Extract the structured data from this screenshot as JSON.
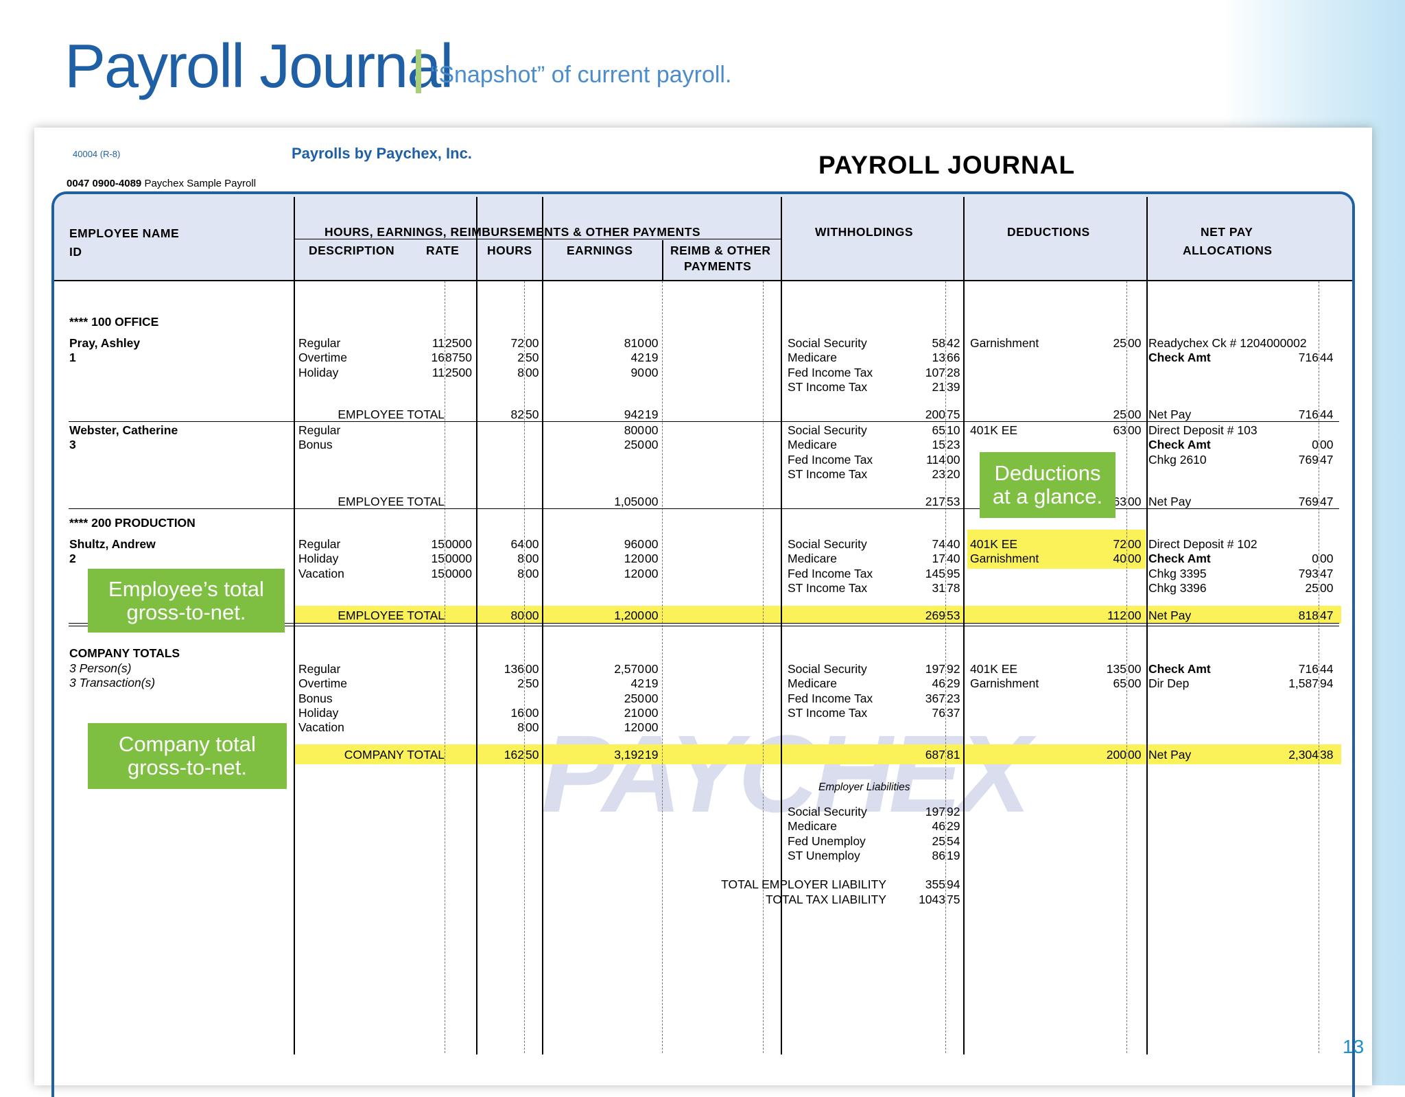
{
  "header": {
    "title": "Payroll Journal",
    "subtitle": "“Snapshot” of current payroll."
  },
  "report": {
    "form_code": "40004 (R-8)",
    "company": "Payrolls by Paychex, Inc.",
    "title": "PAYROLL JOURNAL",
    "account_number": "0047 0900-4089",
    "account_name": "Paychex Sample Payroll",
    "watermark": "PAYCHEX"
  },
  "columns": {
    "employee_name": "EMPLOYEE NAME",
    "id": "ID",
    "hours_group": "HOURS, EARNINGS, REIMBURSEMENTS & OTHER PAYMENTS",
    "description": "DESCRIPTION",
    "rate": "RATE",
    "hours": "HOURS",
    "earnings": "EARNINGS",
    "reimb_1": "REIMB & OTHER",
    "reimb_2": "PAYMENTS",
    "withholdings": "WITHHOLDINGS",
    "deductions": "DEDUCTIONS",
    "net_pay_1": "NET PAY",
    "net_pay_2": "ALLOCATIONS"
  },
  "departments": [
    "**** 100 OFFICE",
    "**** 200 PRODUCTION"
  ],
  "labels": {
    "employee_total": "EMPLOYEE TOTAL",
    "company_totals": "COMPANY TOTALS",
    "company_total": "COMPANY TOTAL",
    "persons": "3 Person(s)",
    "transactions": "3 Transaction(s)",
    "employer_liabilities": "Employer Liabilities",
    "total_employer_liability": "TOTAL EMPLOYER LIABILITY",
    "total_tax_liability": "TOTAL TAX LIABILITY",
    "net_pay": "Net Pay"
  },
  "employees": [
    {
      "name": "Pray, Ashley",
      "id": "1",
      "earnings": [
        {
          "desc": "Regular",
          "rate_i": "11",
          "rate_d": "2500",
          "hours_i": "72",
          "hours_d": "00",
          "earn_i": "810",
          "earn_d": "00"
        },
        {
          "desc": "Overtime",
          "rate_i": "16",
          "rate_d": "8750",
          "hours_i": "2",
          "hours_d": "50",
          "earn_i": "42",
          "earn_d": "19"
        },
        {
          "desc": "Holiday",
          "rate_i": "11",
          "rate_d": "2500",
          "hours_i": "8",
          "hours_d": "00",
          "earn_i": "90",
          "earn_d": "00"
        }
      ],
      "withholdings": [
        {
          "label": "Social Security",
          "i": "58",
          "d": "42"
        },
        {
          "label": "Medicare",
          "i": "13",
          "d": "66"
        },
        {
          "label": "Fed Income Tax",
          "i": "107",
          "d": "28"
        },
        {
          "label": "ST Income Tax",
          "i": "21",
          "d": "39"
        }
      ],
      "deductions": [
        {
          "label": "Garnishment",
          "i": "25",
          "d": "00"
        }
      ],
      "net": [
        {
          "label": "Readychex Ck # 1204000002",
          "i": "",
          "d": "",
          "bold": false
        },
        {
          "label": "Check Amt",
          "i": "716",
          "d": "44",
          "bold": true
        }
      ],
      "total": {
        "hours_i": "82",
        "hours_d": "50",
        "earn_i": "942",
        "earn_d": "19",
        "wh_i": "200",
        "wh_d": "75",
        "ded_i": "25",
        "ded_d": "00",
        "net_i": "716",
        "net_d": "44"
      }
    },
    {
      "name": "Webster, Catherine",
      "id": "3",
      "earnings": [
        {
          "desc": "Regular",
          "rate_i": "",
          "rate_d": "",
          "hours_i": "",
          "hours_d": "",
          "earn_i": "800",
          "earn_d": "00"
        },
        {
          "desc": "Bonus",
          "rate_i": "",
          "rate_d": "",
          "hours_i": "",
          "hours_d": "",
          "earn_i": "250",
          "earn_d": "00"
        }
      ],
      "withholdings": [
        {
          "label": "Social Security",
          "i": "65",
          "d": "10"
        },
        {
          "label": "Medicare",
          "i": "15",
          "d": "23"
        },
        {
          "label": "Fed Income Tax",
          "i": "114",
          "d": "00"
        },
        {
          "label": "ST Income Tax",
          "i": "23",
          "d": "20"
        }
      ],
      "deductions": [
        {
          "label": "401K EE",
          "i": "63",
          "d": "00"
        }
      ],
      "net": [
        {
          "label": "Direct Deposit # 103",
          "i": "",
          "d": "",
          "bold": false
        },
        {
          "label": "Check Amt",
          "i": "0",
          "d": "00",
          "bold": true
        },
        {
          "label": "Chkg 2610",
          "i": "769",
          "d": "47",
          "bold": false
        }
      ],
      "total": {
        "hours_i": "",
        "hours_d": "",
        "earn_i": "1,050",
        "earn_d": "00",
        "wh_i": "217",
        "wh_d": "53",
        "ded_i": "63",
        "ded_d": "00",
        "net_i": "769",
        "net_d": "47"
      }
    },
    {
      "name": "Shultz, Andrew",
      "id": "2",
      "earnings": [
        {
          "desc": "Regular",
          "rate_i": "15",
          "rate_d": "0000",
          "hours_i": "64",
          "hours_d": "00",
          "earn_i": "960",
          "earn_d": "00"
        },
        {
          "desc": "Holiday",
          "rate_i": "15",
          "rate_d": "0000",
          "hours_i": "8",
          "hours_d": "00",
          "earn_i": "120",
          "earn_d": "00"
        },
        {
          "desc": "Vacation",
          "rate_i": "15",
          "rate_d": "0000",
          "hours_i": "8",
          "hours_d": "00",
          "earn_i": "120",
          "earn_d": "00"
        }
      ],
      "withholdings": [
        {
          "label": "Social Security",
          "i": "74",
          "d": "40"
        },
        {
          "label": "Medicare",
          "i": "17",
          "d": "40"
        },
        {
          "label": "Fed Income Tax",
          "i": "145",
          "d": "95"
        },
        {
          "label": "ST Income Tax",
          "i": "31",
          "d": "78"
        }
      ],
      "deductions": [
        {
          "label": "401K EE",
          "i": "72",
          "d": "00"
        },
        {
          "label": "Garnishment",
          "i": "40",
          "d": "00"
        }
      ],
      "net": [
        {
          "label": "Direct Deposit # 102",
          "i": "",
          "d": "",
          "bold": false
        },
        {
          "label": "Check Amt",
          "i": "0",
          "d": "00",
          "bold": true
        },
        {
          "label": "Chkg 3395",
          "i": "793",
          "d": "47",
          "bold": false
        },
        {
          "label": "Chkg 3396",
          "i": "25",
          "d": "00",
          "bold": false
        }
      ],
      "total": {
        "hours_i": "80",
        "hours_d": "00",
        "earn_i": "1,200",
        "earn_d": "00",
        "wh_i": "269",
        "wh_d": "53",
        "ded_i": "112",
        "ded_d": "00",
        "net_i": "818",
        "net_d": "47"
      }
    }
  ],
  "company": {
    "earnings": [
      {
        "desc": "Regular",
        "hours_i": "136",
        "hours_d": "00",
        "earn_i": "2,570",
        "earn_d": "00"
      },
      {
        "desc": "Overtime",
        "hours_i": "2",
        "hours_d": "50",
        "earn_i": "42",
        "earn_d": "19"
      },
      {
        "desc": "Bonus",
        "hours_i": "",
        "hours_d": "",
        "earn_i": "250",
        "earn_d": "00"
      },
      {
        "desc": "Holiday",
        "hours_i": "16",
        "hours_d": "00",
        "earn_i": "210",
        "earn_d": "00"
      },
      {
        "desc": "Vacation",
        "hours_i": "8",
        "hours_d": "00",
        "earn_i": "120",
        "earn_d": "00"
      }
    ],
    "withholdings": [
      {
        "label": "Social Security",
        "i": "197",
        "d": "92"
      },
      {
        "label": "Medicare",
        "i": "46",
        "d": "29"
      },
      {
        "label": "Fed Income Tax",
        "i": "367",
        "d": "23"
      },
      {
        "label": "ST Income Tax",
        "i": "76",
        "d": "37"
      }
    ],
    "deductions": [
      {
        "label": "401K EE",
        "i": "135",
        "d": "00"
      },
      {
        "label": "Garnishment",
        "i": "65",
        "d": "00"
      }
    ],
    "net": [
      {
        "label": "Check Amt",
        "i": "716",
        "d": "44",
        "bold": true
      },
      {
        "label": "Dir Dep",
        "i": "1,587",
        "d": "94",
        "bold": false
      }
    ],
    "total": {
      "hours_i": "162",
      "hours_d": "50",
      "earn_i": "3,192",
      "earn_d": "19",
      "wh_i": "687",
      "wh_d": "81",
      "ded_i": "200",
      "ded_d": "00",
      "net_i": "2,304",
      "net_d": "38"
    },
    "liabilities": [
      {
        "label": "Social Security",
        "i": "197",
        "d": "92"
      },
      {
        "label": "Medicare",
        "i": "46",
        "d": "29"
      },
      {
        "label": "Fed Unemploy",
        "i": "25",
        "d": "54"
      },
      {
        "label": "ST Unemploy",
        "i": "86",
        "d": "19"
      }
    ],
    "total_employer_liability": {
      "i": "355",
      "d": "94"
    },
    "total_tax_liability": {
      "i": "1043",
      "d": "75"
    }
  },
  "callouts": {
    "deductions": [
      "Deductions",
      "at a glance."
    ],
    "employee": [
      "Employee’s total",
      "gross-to-net."
    ],
    "company": [
      "Company total",
      "gross-to-net."
    ]
  },
  "page_number": "13",
  "colors": {
    "brand_blue": "#1f5fa6",
    "header_fill": "#e0e5f3",
    "highlight": "#fbf159",
    "callout_green": "#7ebf42"
  }
}
